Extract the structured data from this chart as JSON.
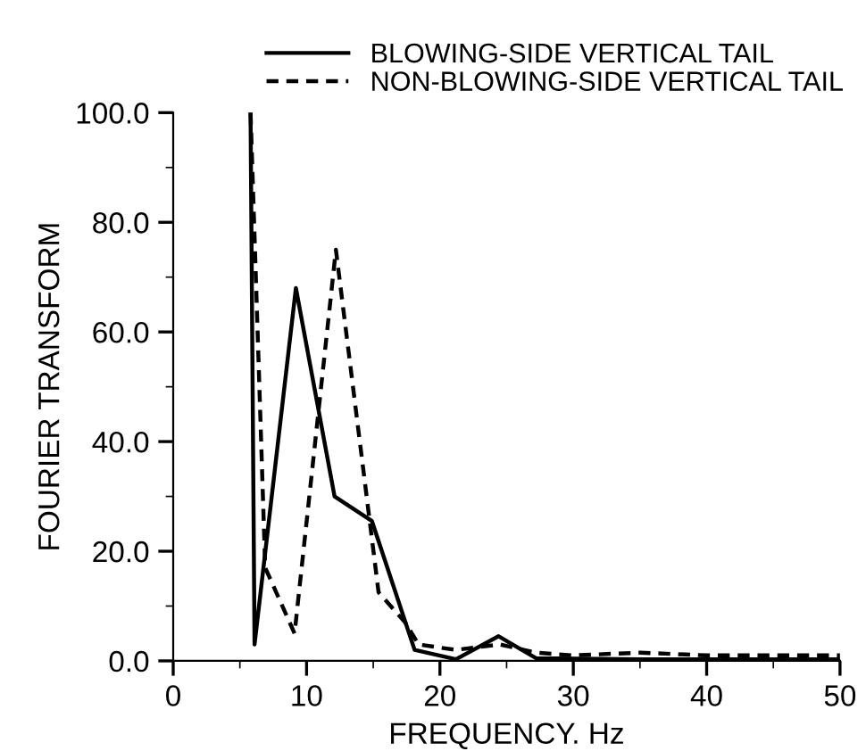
{
  "chart_data": {
    "type": "line",
    "xlabel": "FREQUENCY. Hz",
    "ylabel": "FOURIER TRANSFORM",
    "xlim": [
      0,
      50
    ],
    "xticks": [
      0,
      10,
      20,
      30,
      40,
      50,
      {
        "value": 5,
        "label": null
      },
      {
        "value": 15,
        "label": null
      },
      {
        "value": 25,
        "label": null
      },
      {
        "value": 35,
        "label": null
      },
      {
        "value": 45,
        "label": null
      }
    ],
    "ylim": [
      0,
      100
    ],
    "yticks": [
      {
        "value": 0,
        "label": "0.0"
      },
      {
        "value": 20,
        "label": "20.0"
      },
      {
        "value": 40,
        "label": "40.0"
      },
      {
        "value": 60,
        "label": "60.0"
      },
      {
        "value": 80,
        "label": "80.0"
      },
      {
        "value": 100,
        "label": "100.0"
      },
      {
        "value": 10,
        "label": null
      },
      {
        "value": 30,
        "label": null
      },
      {
        "value": 50,
        "label": null
      },
      {
        "value": 70,
        "label": null
      },
      {
        "value": 90,
        "label": null
      }
    ],
    "grid": false,
    "legend": "top",
    "marker": "none",
    "series": [
      {
        "name": "BLOWING-SIDE VERTICAL TAIL",
        "color": "#000000",
        "line_style": "solid",
        "x": [
          5.8,
          6.1,
          9.2,
          12.1,
          14.9,
          18.1,
          21.2,
          24.4,
          27.2,
          35,
          50
        ],
        "values": [
          100,
          3,
          68,
          30,
          25.5,
          2,
          0.3,
          4.5,
          0.5,
          0.3,
          0.3
        ]
      },
      {
        "name": "NON-BLOWING-SIDE VERTICAL TAIL",
        "color": "#000000",
        "line_style": "dashed",
        "x": [
          5.8,
          6.9,
          9.1,
          12.2,
          15.4,
          17.4,
          18.4,
          21.2,
          24.5,
          27.2,
          30,
          35,
          40,
          45,
          50
        ],
        "values": [
          100,
          17,
          5,
          75,
          12.5,
          7,
          3,
          2,
          3,
          1.5,
          1,
          1.5,
          1,
          1,
          1
        ]
      }
    ]
  }
}
